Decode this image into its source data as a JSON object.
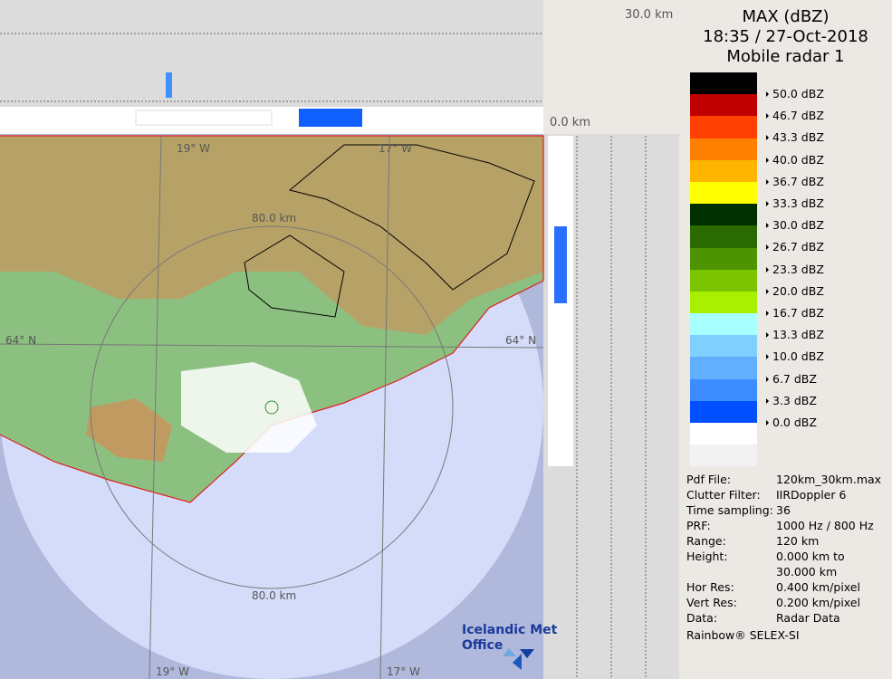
{
  "legend": {
    "title": "MAX (dBZ)",
    "datetime": "18:35 / 27-Oct-2018",
    "radar": "Mobile radar 1",
    "colors": [
      "#000000",
      "#c00000",
      "#ff4000",
      "#ff8000",
      "#ffb400",
      "#ffff00",
      "#003000",
      "#2a6a00",
      "#4e9400",
      "#7cc400",
      "#a8f000",
      "#a8ffff",
      "#80d0ff",
      "#60b0ff",
      "#3c8cff",
      "#0050ff",
      "#ffffff",
      "#f2f2f2"
    ],
    "labels": [
      "50.0 dBZ",
      "46.7 dBZ",
      "43.3 dBZ",
      "40.0 dBZ",
      "36.7 dBZ",
      "33.3 dBZ",
      "30.0 dBZ",
      "26.7 dBZ",
      "23.3 dBZ",
      "20.0 dBZ",
      "16.7 dBZ",
      "13.3 dBZ",
      "10.0 dBZ",
      "6.7 dBZ",
      "3.3 dBZ",
      "0.0 dBZ"
    ]
  },
  "info": [
    {
      "k": "Pdf File:",
      "v": "120km_30km.max"
    },
    {
      "k": "Clutter Filter:",
      "v": "IIRDoppler 6"
    },
    {
      "k": "Time sampling:",
      "v": "36"
    },
    {
      "k": "PRF:",
      "v": "1000 Hz / 800 Hz"
    },
    {
      "k": "Range:",
      "v": "120 km"
    },
    {
      "k": "Height:",
      "v": "0.000 km to"
    },
    {
      "k": "",
      "v": "30.000 km"
    },
    {
      "k": "Hor Res:",
      "v": "0.400 km/pixel"
    },
    {
      "k": "Vert Res:",
      "v": "0.200 km/pixel"
    },
    {
      "k": "Data:",
      "v": "Radar Data"
    }
  ],
  "credit": "Rainbow® SELEX-SI",
  "map": {
    "lon_19": "19° W",
    "lon_17": "17° W",
    "lat_64": "64° N",
    "ring_80": "80.0 km",
    "height_top": "30.0 km",
    "height_zero": "0.0 km",
    "logo": "Icelandic Met Office"
  }
}
